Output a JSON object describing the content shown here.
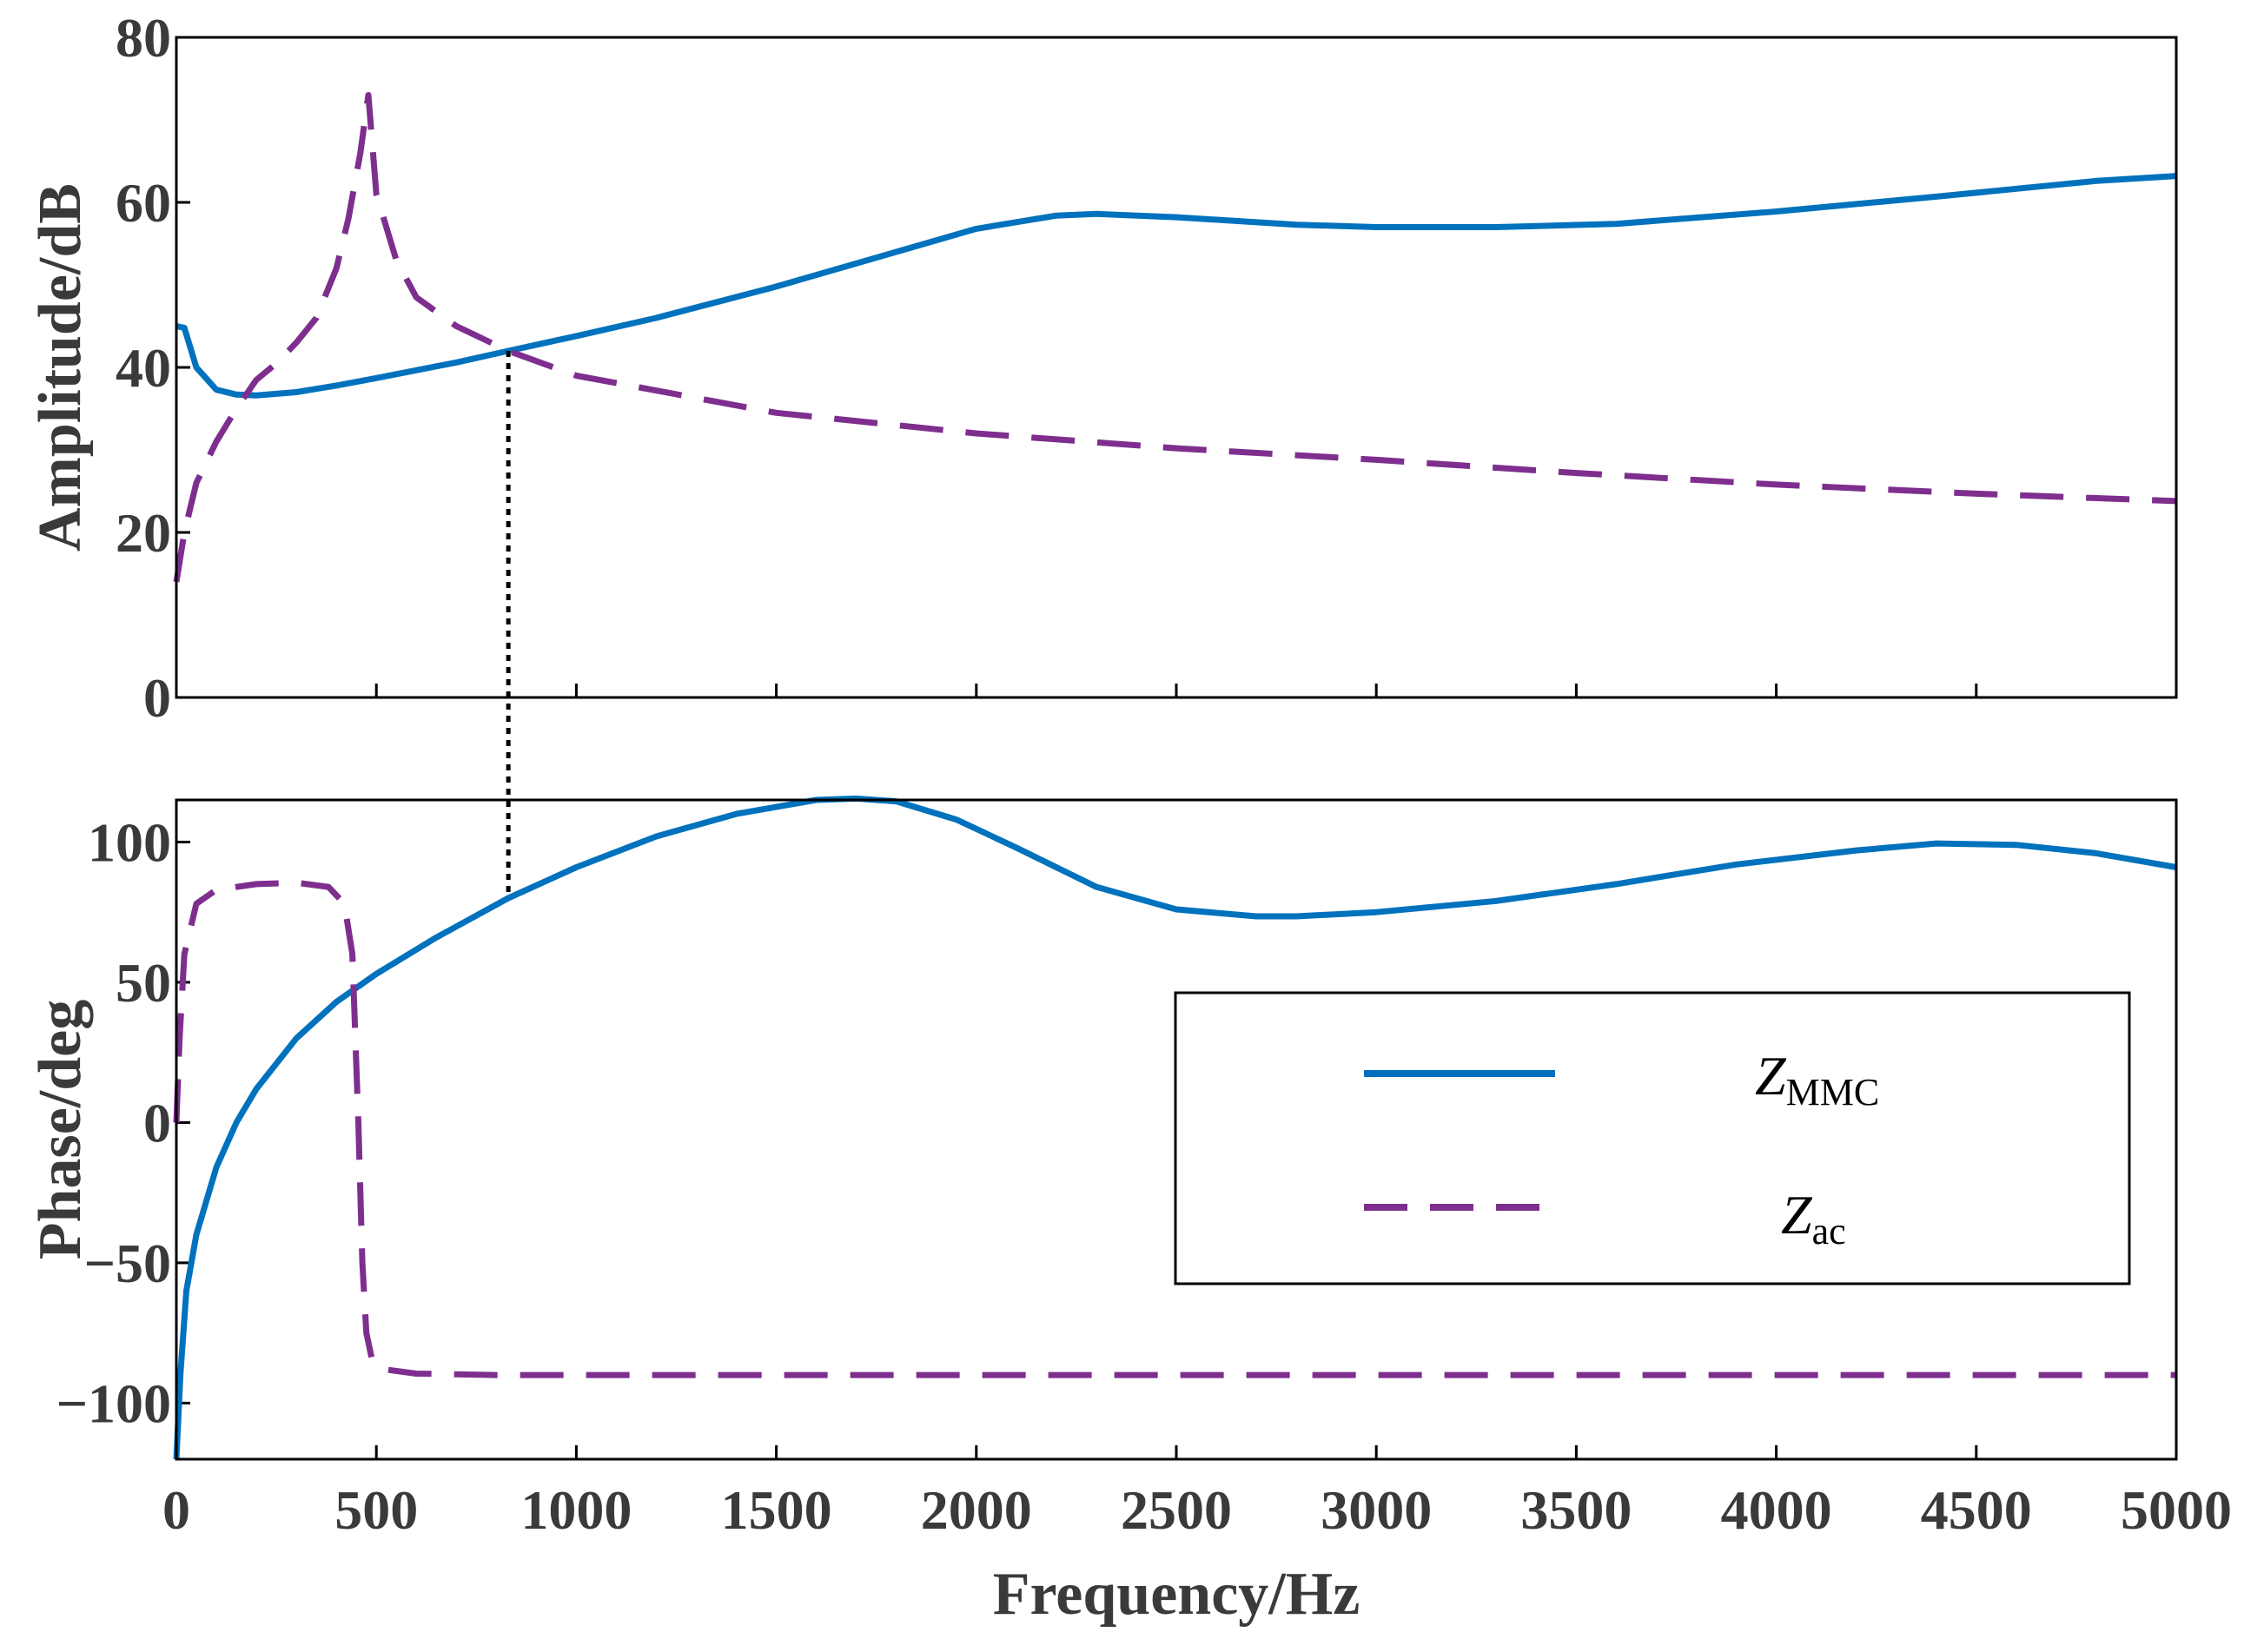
{
  "chart_data": {
    "type": "line",
    "x_label": "Frequency/Hz",
    "x_ticks": [
      "0",
      "500",
      "1000",
      "1500",
      "2000",
      "2500",
      "3000",
      "3500",
      "4000",
      "4500",
      "5000"
    ],
    "xlim": [
      0,
      5000
    ],
    "colors": {
      "zmmc": "#0072bd",
      "zac": "#7e2f8e",
      "marker": "#000000"
    },
    "marker_frequency": 830,
    "legend": {
      "placement": "lower-right of phase plot",
      "items": [
        {
          "symbol": "Z",
          "subscript": "MMC",
          "style": "solid"
        },
        {
          "symbol": "Z",
          "subscript": "ac",
          "style": "dashed"
        }
      ]
    },
    "panels": [
      {
        "name": "amplitude",
        "y_label": "Amplitude/dB",
        "ylim": [
          0,
          80
        ],
        "y_ticks": [
          "0",
          "20",
          "40",
          "60",
          "80"
        ],
        "y_tick_values": [
          0,
          20,
          40,
          60,
          80
        ],
        "series": [
          {
            "name": "ZMMC",
            "x": [
              0,
              20,
              50,
              100,
              150,
              200,
              300,
              400,
              500,
              700,
              830,
              1000,
              1200,
              1500,
              1800,
              2000,
              2200,
              2300,
              2500,
              2800,
              3000,
              3300,
              3600,
              4000,
              4400,
              4800,
              5000
            ],
            "y": [
              45,
              44.8,
              40,
              37.3,
              36.7,
              36.6,
              37,
              37.8,
              38.7,
              40.6,
              42,
              43.8,
              46,
              49.8,
              54,
              56.8,
              58.4,
              58.6,
              58.2,
              57.3,
              57,
              57,
              57.4,
              58.9,
              60.7,
              62.6,
              63.2
            ]
          },
          {
            "name": "Zac",
            "x": [
              0,
              20,
              50,
              100,
              150,
              200,
              250,
              300,
              350,
              400,
              430,
              460,
              480,
              500,
              550,
              600,
              700,
              830,
              1000,
              1500,
              2000,
              2500,
              3000,
              3500,
              4000,
              4500,
              5000
            ],
            "y": [
              14,
              20,
              26,
              31,
              35,
              38.5,
              40.5,
              43,
              46,
              52,
              58,
              66,
              73,
              61,
              53,
              48.5,
              45,
              42,
              39,
              34.5,
              32,
              30.2,
              28.8,
              27.2,
              25.8,
              24.7,
              23.8
            ]
          }
        ]
      },
      {
        "name": "phase",
        "y_label": "Phase/deg",
        "ylim": [
          -120,
          115
        ],
        "y_ticks": [
          "−100",
          "−50",
          "0",
          "50",
          "100"
        ],
        "y_tick_values": [
          -100,
          -50,
          0,
          50,
          100
        ],
        "series": [
          {
            "name": "ZMMC",
            "x": [
              0,
              10,
              25,
              50,
              75,
              100,
              150,
              200,
              300,
              400,
              500,
              650,
              830,
              1000,
              1200,
              1400,
              1600,
              1700,
              1800,
              1950,
              2100,
              2300,
              2500,
              2700,
              2800,
              3000,
              3300,
              3600,
              3900,
              4200,
              4400,
              4600,
              4800,
              5000
            ],
            "y": [
              -120,
              -90,
              -60,
              -40,
              -28,
              -16,
              0,
              12,
              30,
              43,
              53,
              66,
              80,
              91,
              102,
              110,
              115,
              115.5,
              114.5,
              108,
              98,
              84,
              76,
              73.5,
              73.5,
              75,
              79,
              85,
              92,
              97,
              99.5,
              99,
              96,
              91
            ]
          },
          {
            "name": "Zac",
            "x": [
              0,
              8,
              20,
              50,
              100,
              200,
              300,
              380,
              420,
              440,
              455,
              465,
              475,
              490,
              520,
              600,
              800,
              1000,
              2000,
              3000,
              4000,
              5000
            ],
            "y": [
              0,
              30,
              60,
              78,
              83,
              85,
              85.5,
              84,
              78,
              60,
              0,
              -50,
              -75,
              -85,
              -88,
              -89.5,
              -90,
              -90,
              -90,
              -90,
              -90,
              -90
            ]
          }
        ]
      }
    ]
  }
}
